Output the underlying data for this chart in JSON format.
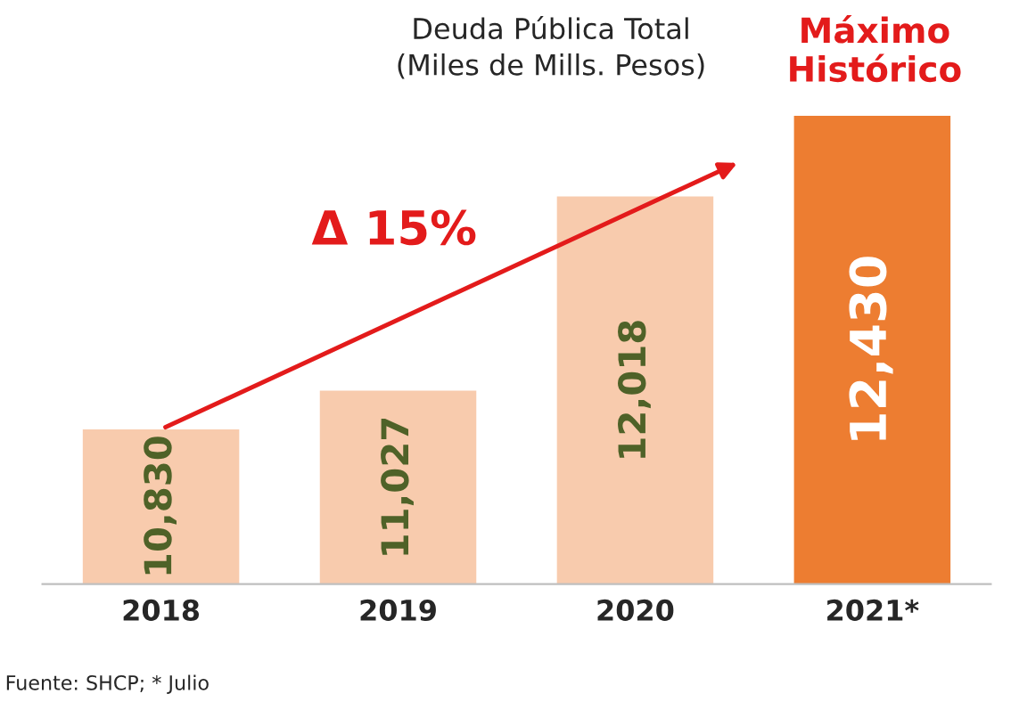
{
  "chart_data": {
    "type": "bar",
    "title": "Deuda Pública Total\n(Miles de Mills. Pesos)",
    "categories": [
      "2018",
      "2019",
      "2020",
      "2021*"
    ],
    "values": [
      10830,
      11027,
      12018,
      12430
    ],
    "colors": [
      "#f8cbad",
      "#f8cbad",
      "#f8cbad",
      "#ed7d31"
    ],
    "value_labels": [
      "10,830",
      "11,027",
      "12,018",
      "12,430"
    ],
    "ylim": [
      10040,
      12430
    ],
    "tick_labels": "x",
    "grid": false,
    "legend": false,
    "annotations": [
      "Δ 15%",
      "Máximo\nHistórico",
      "Fuente: SHCP; * Julio"
    ]
  }
}
